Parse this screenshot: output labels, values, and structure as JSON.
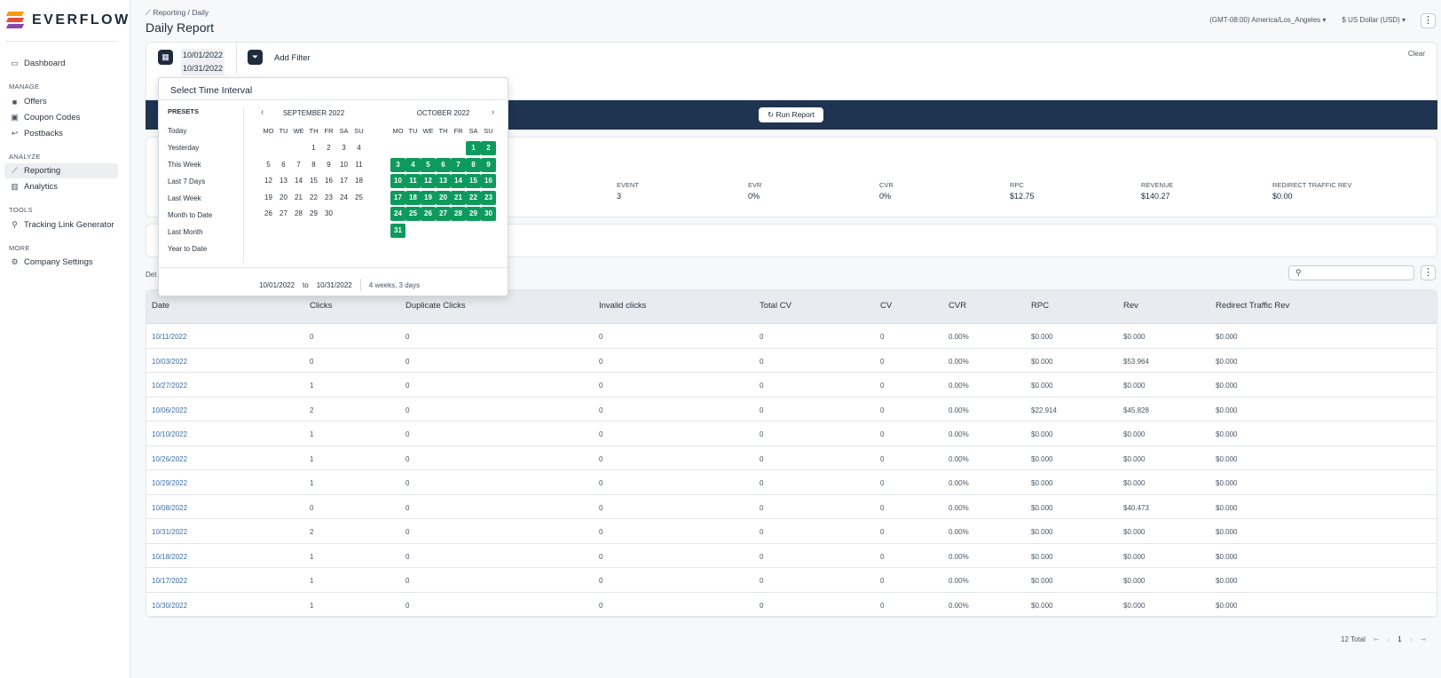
{
  "sidebar": {
    "brand": "EVERFLOW",
    "dashboard": "Dashboard",
    "sections": {
      "manage": "MANAGE",
      "analyze": "ANALYZE",
      "tools": "TOOLS",
      "more": "MORE"
    },
    "offers": "Offers",
    "coupon_codes": "Coupon Codes",
    "postbacks": "Postbacks",
    "reporting": "Reporting",
    "analytics": "Analytics",
    "tracking_link_generator": "Tracking Link Generator",
    "company_settings": "Company Settings"
  },
  "header": {
    "breadcrumb": "Reporting / Daily",
    "title": "Daily Report",
    "timezone": "(GMT-08:00) America/Los_Angeles",
    "currency": "$ US Dollar (USD)"
  },
  "filters": {
    "date_start": "10/01/2022",
    "date_end": "10/31/2022",
    "add_filter": "Add Filter",
    "clear": "Clear",
    "run_report": "Run Report"
  },
  "summary": [
    {
      "label": "EVENT",
      "value": "3"
    },
    {
      "label": "EVR",
      "value": "0%"
    },
    {
      "label": "CVR",
      "value": "0%"
    },
    {
      "label": "RPC",
      "value": "$12.75"
    },
    {
      "label": "REVENUE",
      "value": "$140.27"
    },
    {
      "label": "REDIRECT TRAFFIC REV",
      "value": "$0.00"
    }
  ],
  "details_label": "Det",
  "table": {
    "columns": [
      "Date",
      "Clicks",
      "Duplicate Clicks",
      "Invalid clicks",
      "Total CV",
      "CV",
      "CVR",
      "RPC",
      "Rev",
      "Redirect Traffic Rev"
    ],
    "rows": [
      [
        "10/11/2022",
        "0",
        "0",
        "0",
        "0",
        "0",
        "0.00%",
        "$0.000",
        "$0.000",
        "$0.000"
      ],
      [
        "10/03/2022",
        "0",
        "0",
        "0",
        "0",
        "0",
        "0.00%",
        "$0.000",
        "$53.964",
        "$0.000"
      ],
      [
        "10/27/2022",
        "1",
        "0",
        "0",
        "0",
        "0",
        "0.00%",
        "$0.000",
        "$0.000",
        "$0.000"
      ],
      [
        "10/06/2022",
        "2",
        "0",
        "0",
        "0",
        "0",
        "0.00%",
        "$22.914",
        "$45.828",
        "$0.000"
      ],
      [
        "10/10/2022",
        "1",
        "0",
        "0",
        "0",
        "0",
        "0.00%",
        "$0.000",
        "$0.000",
        "$0.000"
      ],
      [
        "10/26/2022",
        "1",
        "0",
        "0",
        "0",
        "0",
        "0.00%",
        "$0.000",
        "$0.000",
        "$0.000"
      ],
      [
        "10/29/2022",
        "1",
        "0",
        "0",
        "0",
        "0",
        "0.00%",
        "$0.000",
        "$0.000",
        "$0.000"
      ],
      [
        "10/08/2022",
        "0",
        "0",
        "0",
        "0",
        "0",
        "0.00%",
        "$0.000",
        "$40.473",
        "$0.000"
      ],
      [
        "10/31/2022",
        "2",
        "0",
        "0",
        "0",
        "0",
        "0.00%",
        "$0.000",
        "$0.000",
        "$0.000"
      ],
      [
        "10/18/2022",
        "1",
        "0",
        "0",
        "0",
        "0",
        "0.00%",
        "$0.000",
        "$0.000",
        "$0.000"
      ],
      [
        "10/17/2022",
        "1",
        "0",
        "0",
        "0",
        "0",
        "0.00%",
        "$0.000",
        "$0.000",
        "$0.000"
      ],
      [
        "10/30/2022",
        "1",
        "0",
        "0",
        "0",
        "0",
        "0.00%",
        "$0.000",
        "$0.000",
        "$0.000"
      ]
    ]
  },
  "pagination": {
    "total": "12 Total",
    "current": "1"
  },
  "picker": {
    "title": "Select Time Interval",
    "presets_title": "PRESETS",
    "presets": [
      "Today",
      "Yesterday",
      "This Week",
      "Last 7 Days",
      "Last Week",
      "Month to Date",
      "Last Month",
      "Year to Date"
    ],
    "weekdays": [
      "MO",
      "TU",
      "WE",
      "TH",
      "FR",
      "SA",
      "SU"
    ],
    "months": [
      {
        "label": "SEPTEMBER  2022",
        "offset": 3,
        "days": 30,
        "selected": []
      },
      {
        "label": "OCTOBER  2022",
        "offset": 5,
        "days": 31,
        "selected": [
          1,
          31
        ]
      }
    ],
    "range_start": "10/01/2022",
    "range_to": "to",
    "range_end": "10/31/2022",
    "duration": "4 weeks, 3 days"
  },
  "colors": {
    "accent": "#0e9a5c",
    "navy": "#1e3450",
    "link": "#3b6ea5"
  }
}
